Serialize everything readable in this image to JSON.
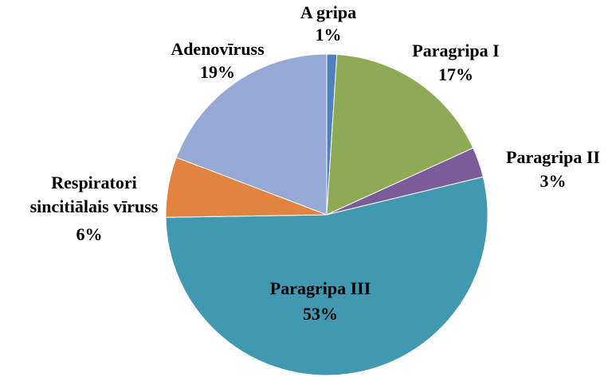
{
  "chart_data": {
    "type": "pie",
    "categories": [
      "A gripa",
      "Paragripa I",
      "Paragripa II",
      "Paragripa III",
      "Respiratori sincitiālais vīruss",
      "Adenovīruss"
    ],
    "values": [
      1,
      17,
      3,
      53,
      6,
      19
    ],
    "value_labels": [
      "1%",
      "17%",
      "3%",
      "53%",
      "6%",
      "19%"
    ],
    "colors": [
      "#4f81bd",
      "#8faa55",
      "#7b5c99",
      "#4198b1",
      "#e0843f",
      "#95a9d4"
    ]
  }
}
